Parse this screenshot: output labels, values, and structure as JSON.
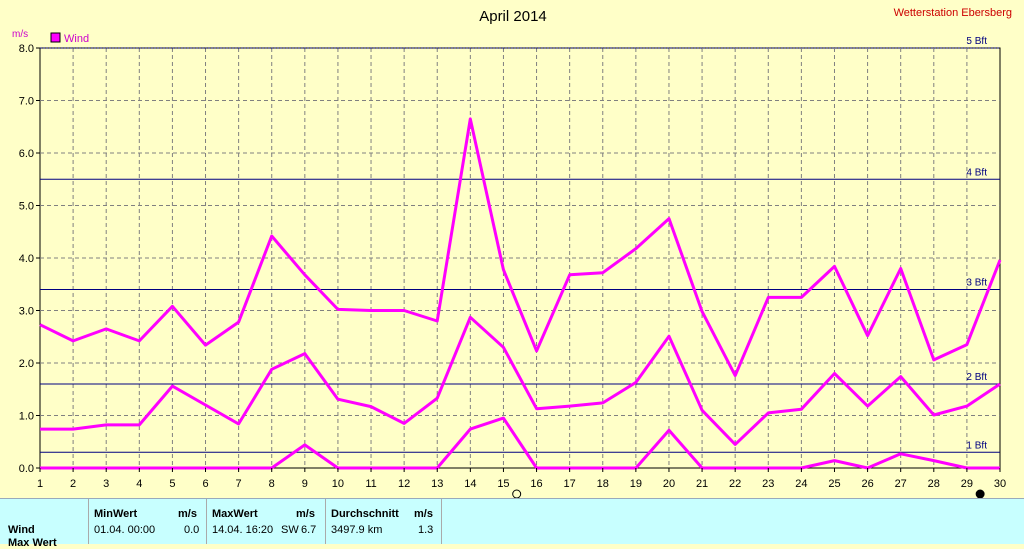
{
  "header": {
    "station": "Wetterstation Ebersberg"
  },
  "chart_data": {
    "type": "line",
    "title": "April 2014",
    "ylabel": "m/s",
    "xlabel": "",
    "xlim": [
      1,
      30
    ],
    "ylim": [
      0,
      8
    ],
    "grid": true,
    "legend_position": "top-left",
    "x_ticks": [
      "1",
      "2",
      "3",
      "4",
      "5",
      "6",
      "7",
      "8",
      "9",
      "10",
      "11",
      "12",
      "13",
      "14",
      "15",
      "16",
      "17",
      "18",
      "19",
      "20",
      "21",
      "22",
      "23",
      "24",
      "25",
      "26",
      "27",
      "28",
      "29",
      "30"
    ],
    "y_ticks": [
      "0.0",
      "1.0",
      "2.0",
      "3.0",
      "4.0",
      "5.0",
      "6.0",
      "7.0",
      "8.0"
    ],
    "x": [
      1,
      2,
      3,
      4,
      5,
      6,
      7,
      8,
      9,
      10,
      11,
      12,
      13,
      14,
      15,
      16,
      17,
      18,
      19,
      20,
      21,
      22,
      23,
      24,
      25,
      26,
      27,
      28,
      29,
      30
    ],
    "series": [
      {
        "name": "Wind",
        "color": "#ff00ff",
        "role": "max",
        "values": [
          2.73,
          2.42,
          2.65,
          2.42,
          3.08,
          2.34,
          2.78,
          4.42,
          3.68,
          3.02,
          3.0,
          3.0,
          2.8,
          6.65,
          3.78,
          2.23,
          3.68,
          3.72,
          4.18,
          4.75,
          2.98,
          1.76,
          3.25,
          3.25,
          3.84,
          2.52,
          3.8,
          2.06,
          2.35,
          3.96
        ]
      },
      {
        "name": "",
        "color": "#ff00ff",
        "role": "avg",
        "values": [
          0.74,
          0.74,
          0.82,
          0.82,
          1.56,
          1.2,
          0.84,
          1.88,
          2.18,
          1.31,
          1.17,
          0.85,
          1.33,
          2.87,
          2.3,
          1.13,
          1.18,
          1.24,
          1.63,
          2.51,
          1.1,
          0.45,
          1.05,
          1.12,
          1.8,
          1.18,
          1.74,
          1.01,
          1.18,
          1.6
        ]
      },
      {
        "name": "",
        "color": "#ff00ff",
        "role": "min",
        "values": [
          0,
          0,
          0,
          0,
          0,
          0,
          0,
          0,
          0.44,
          0,
          0,
          0,
          0,
          0.74,
          0.95,
          0,
          0,
          0,
          0,
          0.72,
          0,
          0,
          0,
          0,
          0.14,
          0,
          0.27,
          0.14,
          0,
          0
        ]
      }
    ],
    "reference_lines": [
      {
        "label": "5 Bft",
        "value": 8.0,
        "style": "dashed"
      },
      {
        "label": "4 Bft",
        "value": 5.5,
        "style": "solid"
      },
      {
        "label": "3 Bft",
        "value": 3.4,
        "style": "solid"
      },
      {
        "label": "2 Bft",
        "value": 1.6,
        "style": "solid"
      },
      {
        "label": "1 Bft",
        "value": 0.3,
        "style": "solid"
      }
    ],
    "moon_phases": [
      {
        "x": 15.4,
        "phase": "full"
      },
      {
        "x": 29.4,
        "phase": "new"
      }
    ],
    "colors": {
      "background": "#ffffc8",
      "series": "#ff00ff",
      "reference": "#000080",
      "title": "#000000",
      "station": "#cc0000",
      "axis_label": "#cc00cc"
    }
  },
  "stats": {
    "headers": {
      "min": "MinWert",
      "min_unit": "m/s",
      "max": "MaxWert",
      "max_unit": "m/s",
      "avg": "Durchschnitt",
      "avg_unit": "m/s"
    },
    "rows": [
      {
        "label": "Wind",
        "min_time": "01.04.  00:00",
        "min_val": "0.0",
        "max_time": "14.04.  16:20",
        "max_dir": "SW",
        "max_val": "6.7",
        "distance": "3497.9 km",
        "avg_val": "1.3"
      },
      {
        "label": "Max Wert"
      }
    ]
  }
}
